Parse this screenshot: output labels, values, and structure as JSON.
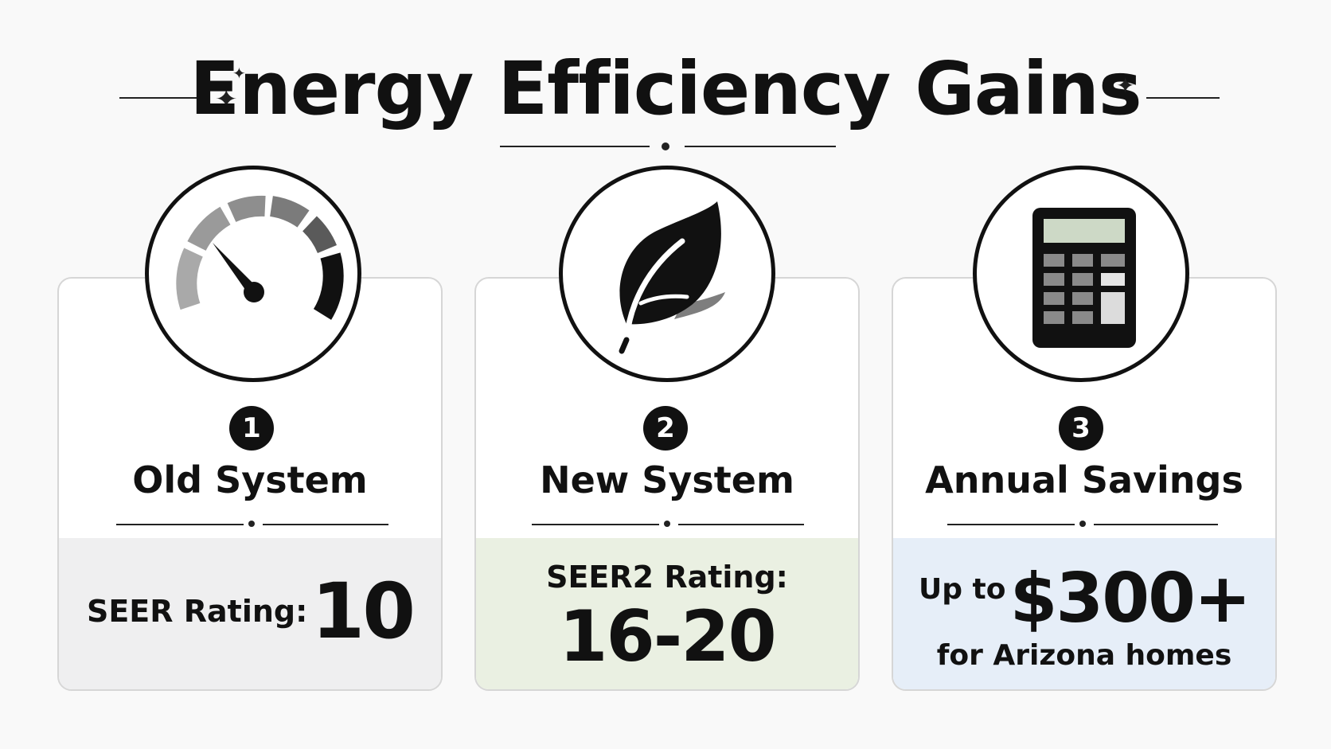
{
  "header": {
    "title": "Energy Efficiency Gains"
  },
  "colors": {
    "old_panel": "#efeff0",
    "new_panel": "#eaf0e2",
    "savings_panel": "#e6eef8",
    "ink": "#111111"
  },
  "cards": [
    {
      "number": "1",
      "title": "Old System",
      "icon": "speedometer-icon",
      "label": "SEER Rating:",
      "value": "10"
    },
    {
      "number": "2",
      "title": "New System",
      "icon": "leaf-icon",
      "label": "SEER2 Rating:",
      "value": "16-20"
    },
    {
      "number": "3",
      "title": "Annual Savings",
      "icon": "calculator-icon",
      "prefix": "Up to",
      "value": "$300+",
      "suffix": "for Arizona homes"
    }
  ]
}
